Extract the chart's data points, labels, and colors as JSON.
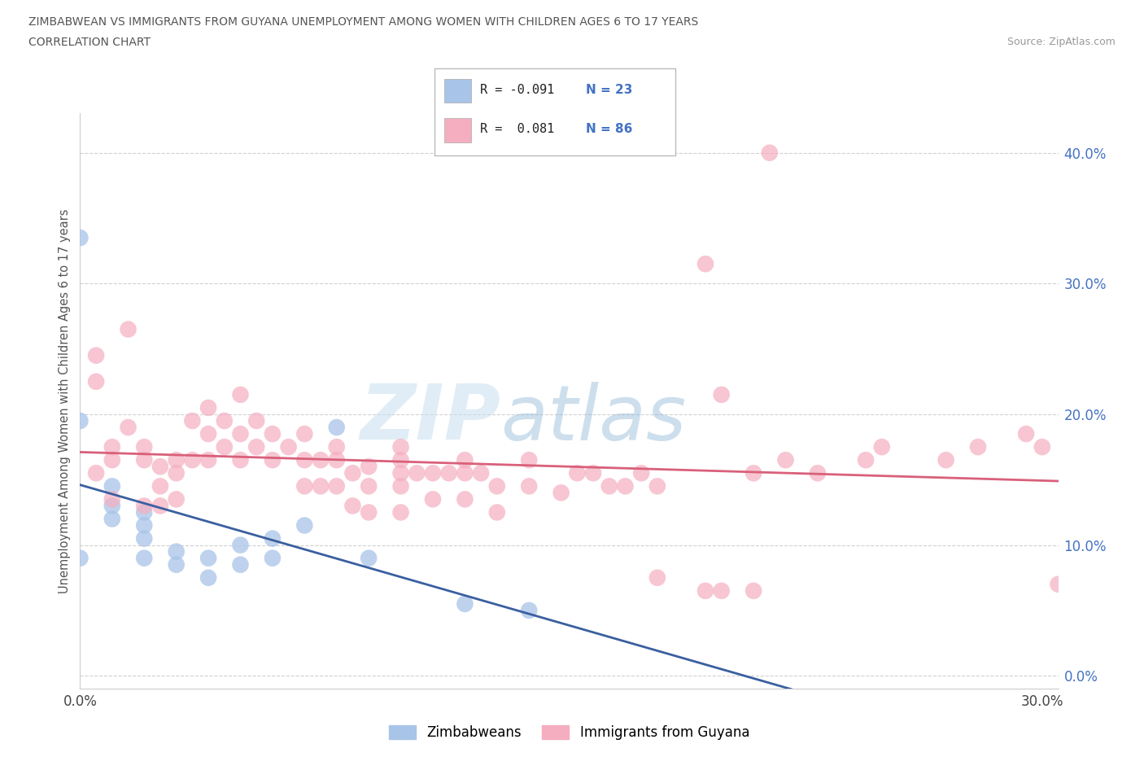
{
  "title_line1": "ZIMBABWEAN VS IMMIGRANTS FROM GUYANA UNEMPLOYMENT AMONG WOMEN WITH CHILDREN AGES 6 TO 17 YEARS",
  "title_line2": "CORRELATION CHART",
  "source": "Source: ZipAtlas.com",
  "ylabel": "Unemployment Among Women with Children Ages 6 to 17 years",
  "xlim": [
    0.0,
    0.305
  ],
  "ylim": [
    -0.01,
    0.43
  ],
  "zim_color": "#a8c4e8",
  "guyana_color": "#f5aec0",
  "zim_line_color": "#3a5fa0",
  "guyana_line_color": "#d9607a",
  "zim_x": [
    0.0,
    0.0,
    0.01,
    0.01,
    0.01,
    0.02,
    0.02,
    0.02,
    0.02,
    0.03,
    0.03,
    0.04,
    0.04,
    0.05,
    0.05,
    0.06,
    0.06,
    0.07,
    0.08,
    0.09,
    0.12,
    0.14,
    0.0
  ],
  "zim_y": [
    0.335,
    0.195,
    0.145,
    0.13,
    0.12,
    0.125,
    0.115,
    0.105,
    0.09,
    0.095,
    0.085,
    0.09,
    0.075,
    0.1,
    0.085,
    0.105,
    0.09,
    0.115,
    0.19,
    0.09,
    0.055,
    0.05,
    0.09
  ],
  "guyana_x": [
    0.005,
    0.005,
    0.005,
    0.01,
    0.01,
    0.01,
    0.015,
    0.015,
    0.02,
    0.02,
    0.02,
    0.025,
    0.025,
    0.025,
    0.03,
    0.03,
    0.03,
    0.035,
    0.035,
    0.04,
    0.04,
    0.04,
    0.045,
    0.045,
    0.05,
    0.05,
    0.05,
    0.055,
    0.055,
    0.06,
    0.06,
    0.065,
    0.07,
    0.07,
    0.07,
    0.075,
    0.075,
    0.08,
    0.08,
    0.08,
    0.085,
    0.085,
    0.09,
    0.09,
    0.09,
    0.1,
    0.1,
    0.1,
    0.1,
    0.1,
    0.105,
    0.11,
    0.11,
    0.115,
    0.12,
    0.12,
    0.12,
    0.125,
    0.13,
    0.13,
    0.14,
    0.14,
    0.15,
    0.155,
    0.16,
    0.165,
    0.17,
    0.175,
    0.18,
    0.2,
    0.21,
    0.22,
    0.23,
    0.245,
    0.25,
    0.27,
    0.28,
    0.295,
    0.3,
    0.305,
    0.195,
    0.215,
    0.2,
    0.18,
    0.195,
    0.21
  ],
  "guyana_y": [
    0.245,
    0.225,
    0.155,
    0.175,
    0.165,
    0.135,
    0.265,
    0.19,
    0.175,
    0.165,
    0.13,
    0.16,
    0.145,
    0.13,
    0.165,
    0.155,
    0.135,
    0.195,
    0.165,
    0.205,
    0.185,
    0.165,
    0.195,
    0.175,
    0.215,
    0.185,
    0.165,
    0.195,
    0.175,
    0.185,
    0.165,
    0.175,
    0.185,
    0.165,
    0.145,
    0.165,
    0.145,
    0.175,
    0.165,
    0.145,
    0.155,
    0.13,
    0.16,
    0.145,
    0.125,
    0.175,
    0.165,
    0.155,
    0.145,
    0.125,
    0.155,
    0.155,
    0.135,
    0.155,
    0.165,
    0.155,
    0.135,
    0.155,
    0.145,
    0.125,
    0.165,
    0.145,
    0.14,
    0.155,
    0.155,
    0.145,
    0.145,
    0.155,
    0.145,
    0.215,
    0.155,
    0.165,
    0.155,
    0.165,
    0.175,
    0.165,
    0.175,
    0.185,
    0.175,
    0.07,
    0.315,
    0.4,
    0.065,
    0.075,
    0.065,
    0.065
  ]
}
